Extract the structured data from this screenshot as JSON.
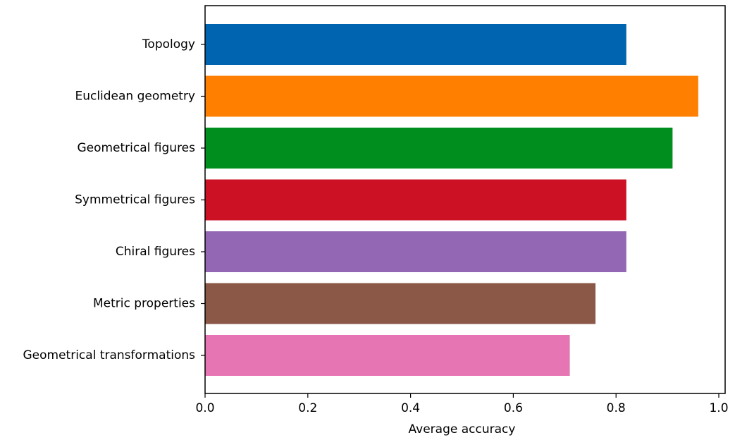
{
  "chart_data": {
    "type": "bar",
    "orientation": "horizontal",
    "title": "",
    "xlabel": "Average accuracy",
    "ylabel": "",
    "xlim": [
      0.0,
      1.0
    ],
    "xticks": [
      0.0,
      0.2,
      0.4,
      0.6,
      0.8,
      1.0
    ],
    "xtick_labels": [
      "0.0",
      "0.2",
      "0.4",
      "0.6",
      "0.8",
      "1.0"
    ],
    "grid": false,
    "legend": "none",
    "categories": [
      "Topology",
      "Euclidean geometry",
      "Geometrical figures",
      "Symmetrical figures",
      "Chiral figures",
      "Metric properties",
      "Geometrical transformations"
    ],
    "values": [
      0.82,
      0.96,
      0.91,
      0.82,
      0.82,
      0.76,
      0.71
    ],
    "colors": [
      "#0064b1",
      "#ff7f00",
      "#008f1e",
      "#cd1124",
      "#9467b5",
      "#8b5746",
      "#e675b3"
    ]
  }
}
